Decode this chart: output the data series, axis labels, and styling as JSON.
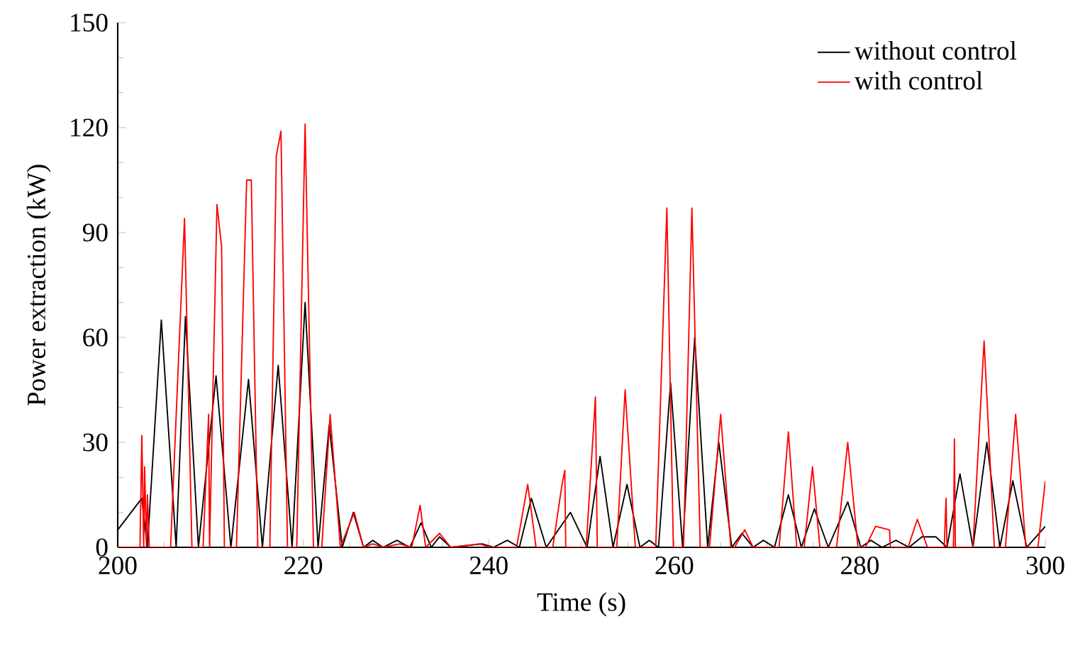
{
  "chart_data": {
    "type": "line",
    "xlabel": "Time (s)",
    "ylabel": "Power extraction (kW)",
    "xlim": [
      200,
      300
    ],
    "ylim": [
      0,
      150
    ],
    "xticks": [
      200,
      220,
      240,
      260,
      280,
      300
    ],
    "yticks": [
      0,
      30,
      60,
      90,
      120,
      150
    ],
    "legend": "top right",
    "grid": false,
    "marker": "none",
    "line_style": "solid",
    "series": [
      {
        "name": "without control",
        "color": "#000000",
        "x": [
          200.0,
          202.6,
          203.2,
          204.7,
          206.3,
          207.3,
          208.7,
          210.6,
          212.2,
          214.1,
          215.6,
          217.3,
          218.8,
          220.2,
          221.6,
          222.8,
          224.2,
          225.4,
          226.5,
          227.5,
          228.6,
          230.1,
          231.5,
          232.7,
          233.8,
          234.7,
          235.9,
          239.3,
          240.5,
          242.0,
          243.3,
          244.6,
          246.2,
          248.8,
          250.6,
          252.0,
          253.4,
          254.9,
          256.3,
          257.3,
          258.3,
          259.6,
          260.9,
          262.2,
          263.6,
          264.8,
          266.2,
          267.3,
          268.5,
          269.6,
          270.8,
          272.3,
          273.7,
          275.1,
          276.6,
          278.7,
          280.1,
          281.2,
          282.4,
          283.9,
          285.3,
          286.7,
          288.2,
          289.4,
          290.8,
          292.2,
          293.7,
          295.1,
          296.5,
          298.0,
          300.0
        ],
        "values": [
          5,
          14,
          0,
          65,
          0,
          66,
          0,
          49,
          0,
          48,
          0,
          52,
          0,
          70,
          0,
          35,
          0,
          10,
          0,
          2,
          0,
          2,
          0,
          7,
          0,
          3,
          0,
          1,
          0,
          2,
          0,
          14,
          0,
          10,
          0,
          26,
          0,
          18,
          0,
          2,
          0,
          47,
          0,
          60,
          0,
          30,
          0,
          4,
          0,
          2,
          0,
          15,
          0,
          11,
          0,
          13,
          0,
          2,
          0,
          2,
          0,
          3,
          3,
          0,
          21,
          0,
          30,
          0,
          19,
          0,
          6
        ]
      },
      {
        "name": "with control",
        "color": "#ff0000",
        "x": [
          200.0,
          202.4,
          202.6,
          202.8,
          202.9,
          203.1,
          203.2,
          203.4,
          205.7,
          207.2,
          208.0,
          209.2,
          209.8,
          209.9,
          210.7,
          211.2,
          211.5,
          212.8,
          213.9,
          214.4,
          215.1,
          216.4,
          217.1,
          217.6,
          218.3,
          219.3,
          220.2,
          221.1,
          222.0,
          222.9,
          224.0,
          225.5,
          226.5,
          227.5,
          228.6,
          230.4,
          231.7,
          232.6,
          233.2,
          234.7,
          235.9,
          239.0,
          240.2,
          243.0,
          244.2,
          245.1,
          246.9,
          247.9,
          248.2,
          248.3,
          250.5,
          251.5,
          251.7,
          253.8,
          254.7,
          255.8,
          258.0,
          259.2,
          259.9,
          261.0,
          261.9,
          262.8,
          263.8,
          265.0,
          266.1,
          266.5,
          267.6,
          268.5,
          271.3,
          272.3,
          273.2,
          274.0,
          274.9,
          275.7,
          277.5,
          278.7,
          279.8,
          280.6,
          281.7,
          283.2,
          283.3,
          285.2,
          286.2,
          287.3,
          289.1,
          289.3,
          289.4,
          290.1,
          290.2,
          290.3,
          292.2,
          293.4,
          294.5,
          295.7,
          296.8,
          297.9,
          299.2,
          300.0
        ],
        "values": [
          0,
          0,
          32,
          0,
          23,
          0,
          15,
          0,
          0,
          94,
          0,
          0,
          38,
          0,
          98,
          86,
          0,
          0,
          105,
          105,
          0,
          0,
          112,
          119,
          0,
          0,
          121,
          0,
          0,
          38,
          0,
          10,
          0,
          1,
          0,
          1,
          0,
          12,
          0,
          4,
          0,
          1,
          0,
          0,
          18,
          0,
          0,
          18,
          22,
          0,
          0,
          43,
          0,
          0,
          45,
          0,
          0,
          97,
          0,
          0,
          97,
          0,
          0,
          38,
          0,
          0,
          5,
          0,
          0,
          33,
          0,
          0,
          23,
          0,
          0,
          30,
          0,
          0,
          6,
          5,
          0,
          0,
          8,
          0,
          0,
          14,
          0,
          0,
          31,
          0,
          0,
          59,
          0,
          0,
          38,
          0,
          0,
          19
        ]
      }
    ]
  }
}
